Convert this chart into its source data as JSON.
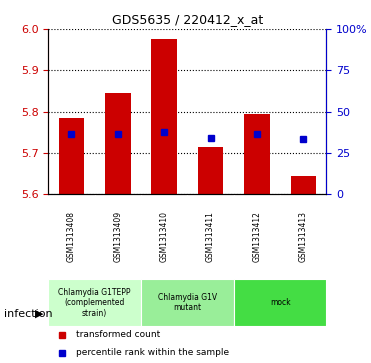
{
  "title": "GDS5635 / 220412_x_at",
  "samples": [
    "GSM1313408",
    "GSM1313409",
    "GSM1313410",
    "GSM1313411",
    "GSM1313412",
    "GSM1313413"
  ],
  "bar_values": [
    5.785,
    5.845,
    5.975,
    5.715,
    5.795,
    5.645
  ],
  "percentile_values": [
    5.745,
    5.745,
    5.75,
    5.735,
    5.745,
    5.733
  ],
  "ylim_left": [
    5.6,
    6.0
  ],
  "yticks_left": [
    5.6,
    5.7,
    5.8,
    5.9,
    6.0
  ],
  "ylim_right": [
    0,
    100
  ],
  "yticks_right": [
    0,
    25,
    50,
    75,
    100
  ],
  "ytick_labels_right": [
    "0",
    "25",
    "50",
    "75",
    "100%"
  ],
  "bar_color": "#cc0000",
  "marker_color": "#0000cc",
  "bar_bottom": 5.6,
  "groups": [
    {
      "label": "Chlamydia G1TEPP\n(complemented\nstrain)",
      "indices": [
        0,
        1
      ],
      "color": "#ccffcc"
    },
    {
      "label": "Chlamydia G1V\nmutant",
      "indices": [
        2,
        3
      ],
      "color": "#99ee99"
    },
    {
      "label": "mock",
      "indices": [
        4,
        5
      ],
      "color": "#44dd44"
    }
  ],
  "infection_label": "infection",
  "legend_items": [
    {
      "label": "transformed count",
      "color": "#cc0000",
      "marker": "s"
    },
    {
      "label": "percentile rank within the sample",
      "color": "#0000cc",
      "marker": "s"
    }
  ],
  "grid_style": "dotted",
  "tick_color_left": "#cc0000",
  "tick_color_right": "#0000cc",
  "background_color": "#ffffff",
  "plot_bg": "#ffffff"
}
